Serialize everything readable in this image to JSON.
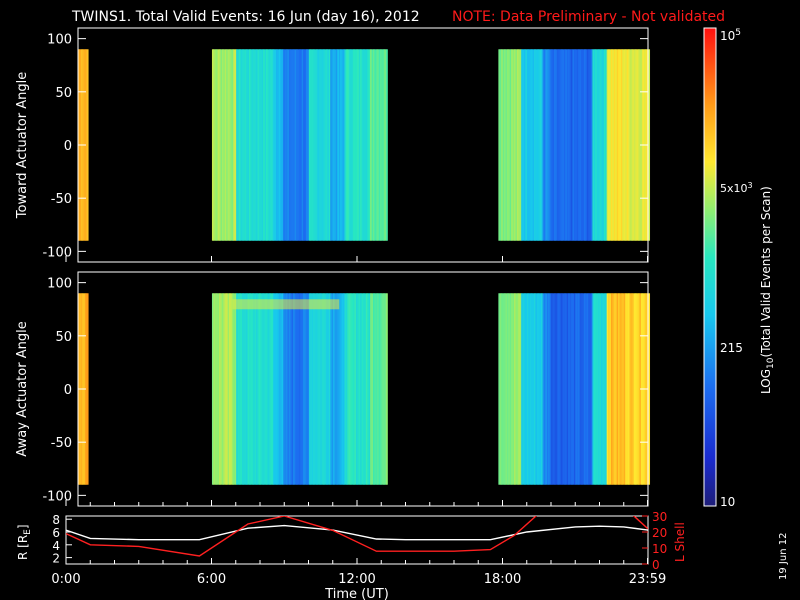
{
  "header": {
    "title": "TWINS1. Total Valid Events: 16 Jun (day  16), 2012",
    "note": "NOTE: Data Preliminary - Not validated"
  },
  "side_date": "19 Jun 12",
  "colors": {
    "background": "#000000",
    "text": "#ffffff",
    "note": "#ff1a1a",
    "r_line": "#ffffff",
    "l_shell_line": "#ff2020"
  },
  "chart_data": [
    {
      "type": "heatmap",
      "ylabel": "Toward Actuator Angle",
      "ylim": [
        -110,
        110
      ],
      "yticks": [
        "100",
        "50",
        "0",
        "-50",
        "-100"
      ],
      "y_data_range": [
        -90,
        90
      ],
      "xlim_hours": [
        0,
        24
      ],
      "data_gaps_hours": [
        [
          0.4,
          5.6
        ],
        [
          13.0,
          17.7
        ]
      ],
      "color_scale": "log10 events per scan, 10 to 1e5"
    },
    {
      "type": "heatmap",
      "ylabel": "Away Actuator Angle",
      "ylim": [
        -110,
        110
      ],
      "yticks": [
        "100",
        "50",
        "0",
        "-50",
        "-100"
      ],
      "y_data_range": [
        -90,
        90
      ],
      "xlim_hours": [
        0,
        24
      ],
      "data_gaps_hours": [
        [
          0.4,
          5.6
        ],
        [
          13.0,
          17.7
        ]
      ],
      "color_scale": "log10 events per scan, 10 to 1e5"
    },
    {
      "type": "line",
      "ylabel_left": "R [R",
      "ylabel_left_sub": "E",
      "ylabel_right": "L Shell",
      "left_ticks": [
        "8",
        "6",
        "4",
        "2"
      ],
      "right_ticks": [
        "30",
        "20",
        "10",
        "0"
      ],
      "ylim_left": [
        1,
        8.5
      ],
      "ylim_right": [
        0,
        30
      ],
      "series": [
        {
          "name": "R",
          "axis": "left",
          "x": [
            0,
            1,
            3,
            5.5,
            7.5,
            9,
            11,
            12.8,
            14,
            16,
            17.5,
            19,
            21,
            22,
            23,
            24
          ],
          "values": [
            6.3,
            5.0,
            4.8,
            4.8,
            6.6,
            7.0,
            6.3,
            4.9,
            4.8,
            4.8,
            4.8,
            6.0,
            6.8,
            6.9,
            6.8,
            6.3
          ]
        },
        {
          "name": "L Shell",
          "axis": "right",
          "x": [
            0,
            1,
            3,
            5.5,
            7.5,
            9,
            11,
            12.8,
            14,
            16,
            17.5,
            18.5,
            19.6,
            23.2,
            24
          ],
          "values": [
            19,
            12,
            11,
            5,
            25,
            30,
            21,
            8,
            8,
            8,
            9,
            18,
            33,
            33,
            22
          ]
        }
      ]
    }
  ],
  "x_axis": {
    "ticks": [
      "0:00",
      "6:00",
      "12:00",
      "18:00",
      "23:59"
    ],
    "label": "Time (UT)"
  },
  "colorbar": {
    "label": "Total Valid Events per Scan)",
    "label_prefix": "LOG",
    "label_sub": "10",
    "label_open": "(",
    "ticks": {
      "top": "10",
      "top_exp": "5",
      "mid1_a": "5x10",
      "mid1_exp": "3",
      "mid2": "215",
      "bottom": "10"
    }
  }
}
